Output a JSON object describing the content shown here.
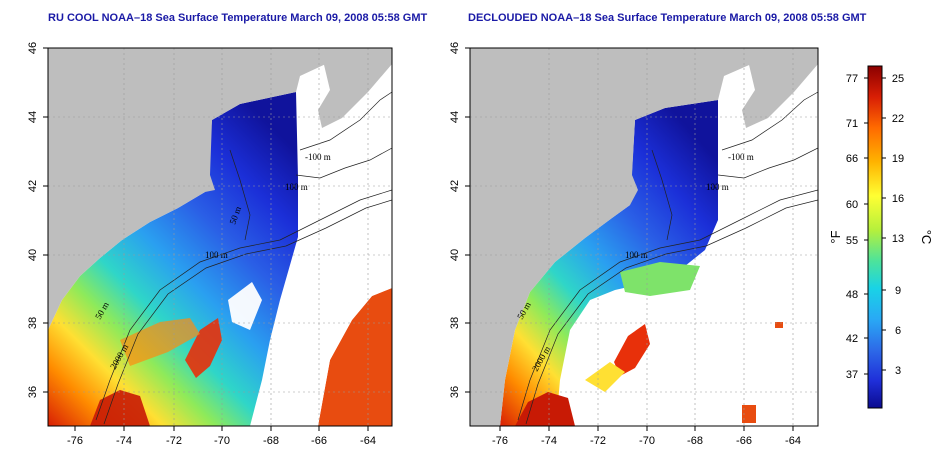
{
  "maps": [
    {
      "id": "left",
      "title": "RU COOL NOAA–18 Sea Surface Temperature March 09, 2008 05:58 GMT",
      "contour_labels": [
        "-100 m",
        "100 m",
        "50 m",
        "2000 m",
        "100 m",
        "50 m"
      ]
    },
    {
      "id": "right",
      "title": "DECLOUDED NOAA–18 Sea Surface Temperature March 09, 2008 05:58 GMT",
      "contour_labels": [
        "-100 m",
        "100 m",
        "100 m",
        "50 m",
        "2000 m"
      ]
    }
  ],
  "axes": {
    "lon_ticks": [
      "-76",
      "-74",
      "-72",
      "-70",
      "-68",
      "-66",
      "-64"
    ],
    "lat_ticks": [
      "46",
      "44",
      "42",
      "40",
      "38",
      "36"
    ]
  },
  "colorbar": {
    "fahrenheit_ticks": [
      "77",
      "71",
      "66",
      "60",
      "55",
      "48",
      "42",
      "37"
    ],
    "celsius_ticks": [
      "25",
      "22",
      "19",
      "16",
      "13",
      "9",
      "6",
      "3"
    ],
    "fahrenheit_unit": "°F",
    "celsius_unit": "°C",
    "colors": [
      "#8b0000",
      "#d81e05",
      "#ff6a00",
      "#ffb300",
      "#ffff33",
      "#b5f03c",
      "#4de39b",
      "#19d3e6",
      "#29a9f5",
      "#2d6ae8",
      "#1f2fd9",
      "#0b0b8f"
    ]
  },
  "colors": {
    "land": "#bebebe",
    "cloud": "#ffffff",
    "title": "#1a1aa6"
  }
}
